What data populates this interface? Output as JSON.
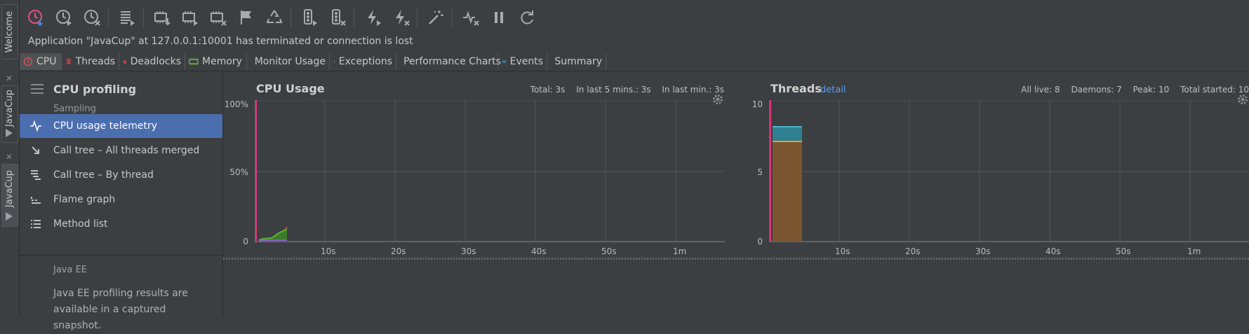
{
  "side_tabs": [
    {
      "label": "Welcome"
    },
    {
      "label": "JavaCup"
    },
    {
      "label": "JavaCup"
    }
  ],
  "status_message": "Application \"JavaCup\" at 127.0.0.1:10001 has terminated or connection is lost",
  "view_tabs": [
    {
      "label": "CPU",
      "icon": "clock-icon",
      "active": true
    },
    {
      "label": "Threads",
      "icon": "threads-icon"
    },
    {
      "label": "Deadlocks",
      "icon": "lock-icon"
    },
    {
      "label": "Memory",
      "icon": "memory-icon"
    },
    {
      "label": "Monitor Usage",
      "icon": "traffic-light-icon"
    },
    {
      "label": "Exceptions",
      "icon": "lightning-icon"
    },
    {
      "label": "Performance Charts",
      "icon": "pulse-icon"
    },
    {
      "label": "Events",
      "icon": "eye-icon"
    },
    {
      "label": "Summary",
      "icon": "clipboard-icon"
    }
  ],
  "nav": {
    "title": "CPU profiling",
    "subtitle": "Sampling",
    "items": [
      {
        "label": "CPU usage telemetry",
        "icon": "pulse-icon",
        "selected": true
      },
      {
        "label": "Call tree – All threads merged",
        "icon": "arrow-down-right-icon"
      },
      {
        "label": "Call tree – By thread",
        "icon": "call-tree-icon"
      },
      {
        "label": "Flame graph",
        "icon": "flame-graph-icon"
      },
      {
        "label": "Method list",
        "icon": "list-icon"
      }
    ],
    "javaee_title": "Java EE",
    "javaee_text": "Java EE profiling results are available in a captured snapshot."
  },
  "cpu_panel": {
    "title": "CPU Usage",
    "total": "Total: 3s",
    "last5": "In last 5 mins.: 3s",
    "last1": "In last min.: 3s",
    "y_ticks": [
      "100%",
      "50%",
      "0"
    ],
    "x_ticks": [
      "10s",
      "20s",
      "30s",
      "40s",
      "50s",
      "1m"
    ]
  },
  "threads_panel": {
    "title": "Threads",
    "detail": "detail",
    "all_live": "All live: 8",
    "daemons": "Daemons: 7",
    "peak": "Peak: 10",
    "total_started": "Total started: 10",
    "y_ticks": [
      "10",
      "5",
      "0"
    ],
    "x_ticks": [
      "10s",
      "20s",
      "30s",
      "40s",
      "50s",
      "1m"
    ]
  },
  "colors": {
    "accent": "#4b6eaf",
    "marker": "#e0357a",
    "cpu_green": "#5bb22e",
    "cpu_purple": "#8a5fd0",
    "thread_brown": "#7a5530",
    "thread_teal": "#2e7f8f"
  }
}
